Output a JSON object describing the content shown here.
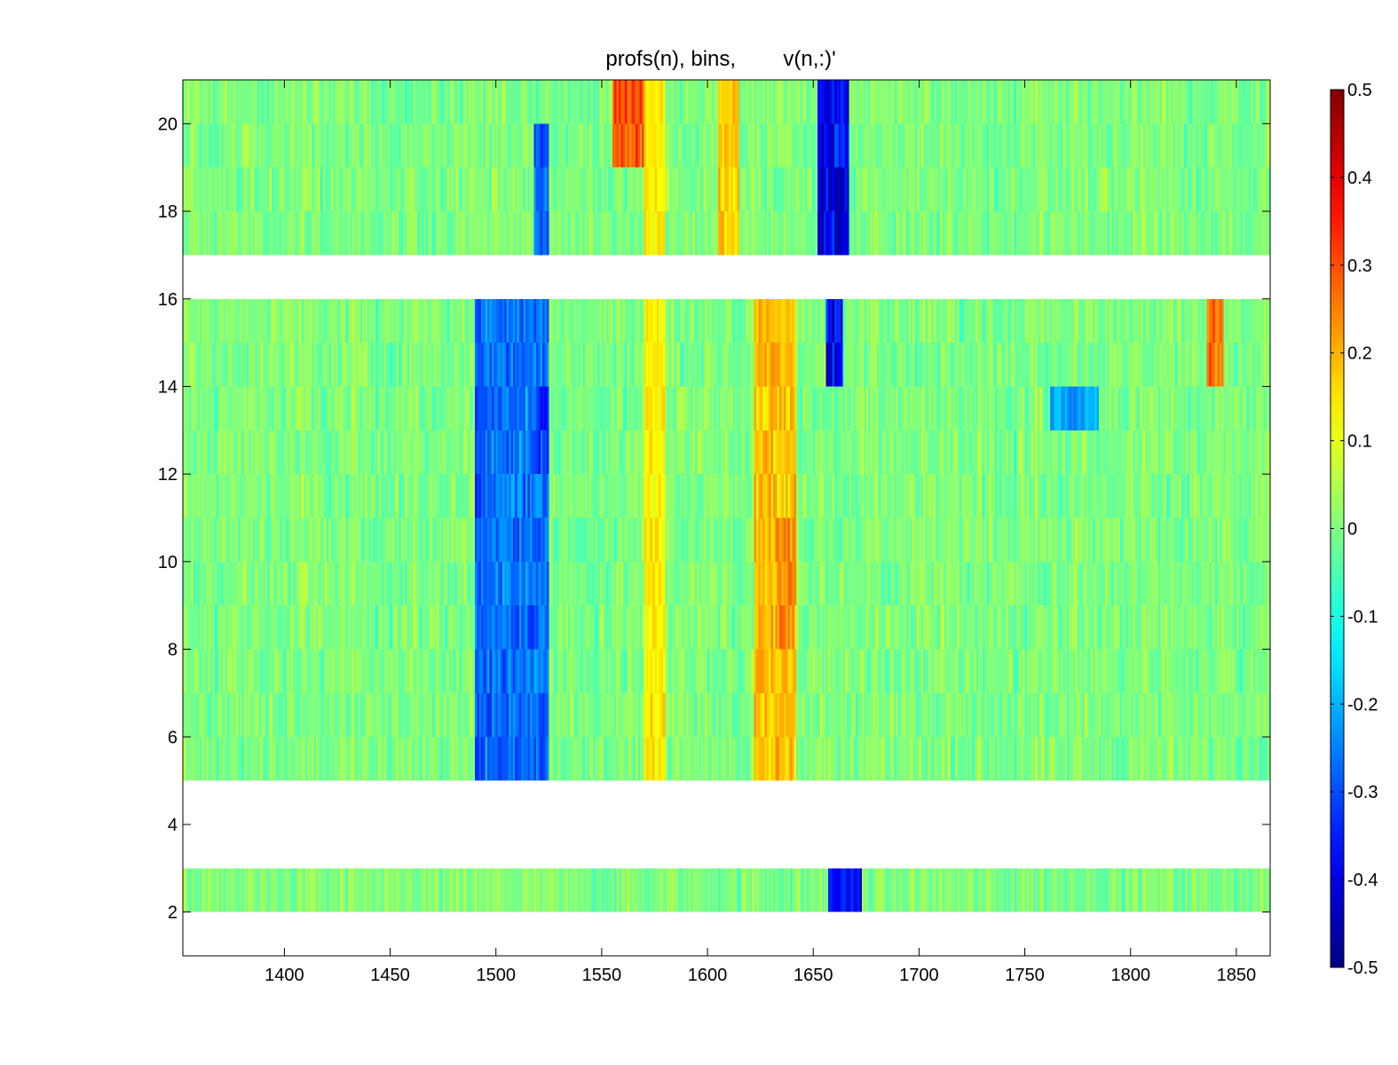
{
  "chart_data": {
    "type": "heatmap",
    "title": "profs(n), bins,        v(n,:)'",
    "xlabel": "",
    "ylabel": "",
    "xlim": [
      1352,
      1866
    ],
    "ylim": [
      1,
      21
    ],
    "x_ticks": [
      1400,
      1450,
      1500,
      1550,
      1600,
      1650,
      1700,
      1750,
      1800,
      1850
    ],
    "y_ticks": [
      2,
      4,
      6,
      8,
      10,
      12,
      14,
      16,
      18,
      20
    ],
    "profiles": [
      {
        "n": 2,
        "present": true
      },
      {
        "n": 3,
        "present": false
      },
      {
        "n": 4,
        "present": false
      },
      {
        "n": 5,
        "present": true
      },
      {
        "n": 6,
        "present": true
      },
      {
        "n": 7,
        "present": true
      },
      {
        "n": 8,
        "present": true
      },
      {
        "n": 9,
        "present": true
      },
      {
        "n": 10,
        "present": true
      },
      {
        "n": 11,
        "present": true
      },
      {
        "n": 12,
        "present": true
      },
      {
        "n": 13,
        "present": true
      },
      {
        "n": 14,
        "present": true
      },
      {
        "n": 15,
        "present": true
      },
      {
        "n": 16,
        "present": false
      },
      {
        "n": 17,
        "present": true
      },
      {
        "n": 18,
        "present": true
      },
      {
        "n": 19,
        "present": true
      },
      {
        "n": 20,
        "present": true
      }
    ],
    "features": [
      {
        "x0": 1490,
        "x1": 1525,
        "rows": [
          5,
          16
        ],
        "value": -0.28
      },
      {
        "x0": 1515,
        "x1": 1525,
        "rows": [
          12,
          14
        ],
        "value": -0.33
      },
      {
        "x0": 1518,
        "x1": 1525,
        "rows": [
          17,
          20
        ],
        "value": -0.3
      },
      {
        "x0": 1555,
        "x1": 1570,
        "rows": [
          19,
          21
        ],
        "value": 0.32
      },
      {
        "x0": 1570,
        "x1": 1580,
        "rows": [
          5,
          21
        ],
        "value": 0.15
      },
      {
        "x0": 1605,
        "x1": 1615,
        "rows": [
          17,
          21
        ],
        "value": 0.18
      },
      {
        "x0": 1622,
        "x1": 1642,
        "rows": [
          5,
          16
        ],
        "value": 0.2
      },
      {
        "x0": 1632,
        "x1": 1642,
        "rows": [
          8,
          11
        ],
        "value": 0.25
      },
      {
        "x0": 1652,
        "x1": 1667,
        "rows": [
          17,
          21
        ],
        "value": -0.42
      },
      {
        "x0": 1656,
        "x1": 1664,
        "rows": [
          14,
          16
        ],
        "value": -0.4
      },
      {
        "x0": 1657,
        "x1": 1673,
        "rows": [
          2,
          3
        ],
        "value": -0.38
      },
      {
        "x0": 1762,
        "x1": 1785,
        "rows": [
          13,
          14
        ],
        "value": -0.22
      },
      {
        "x0": 1836,
        "x1": 1844,
        "rows": [
          14,
          16
        ],
        "value": 0.28
      }
    ],
    "colorbar": {
      "colormap": "jet",
      "clim": [
        -0.5,
        0.5
      ],
      "ticks": [
        "-0.5",
        "-0.4",
        "-0.3",
        "-0.2",
        "-0.1",
        "0",
        "0.1",
        "0.2",
        "0.3",
        "0.4",
        "0.5"
      ],
      "location": "right"
    },
    "grid": false
  }
}
